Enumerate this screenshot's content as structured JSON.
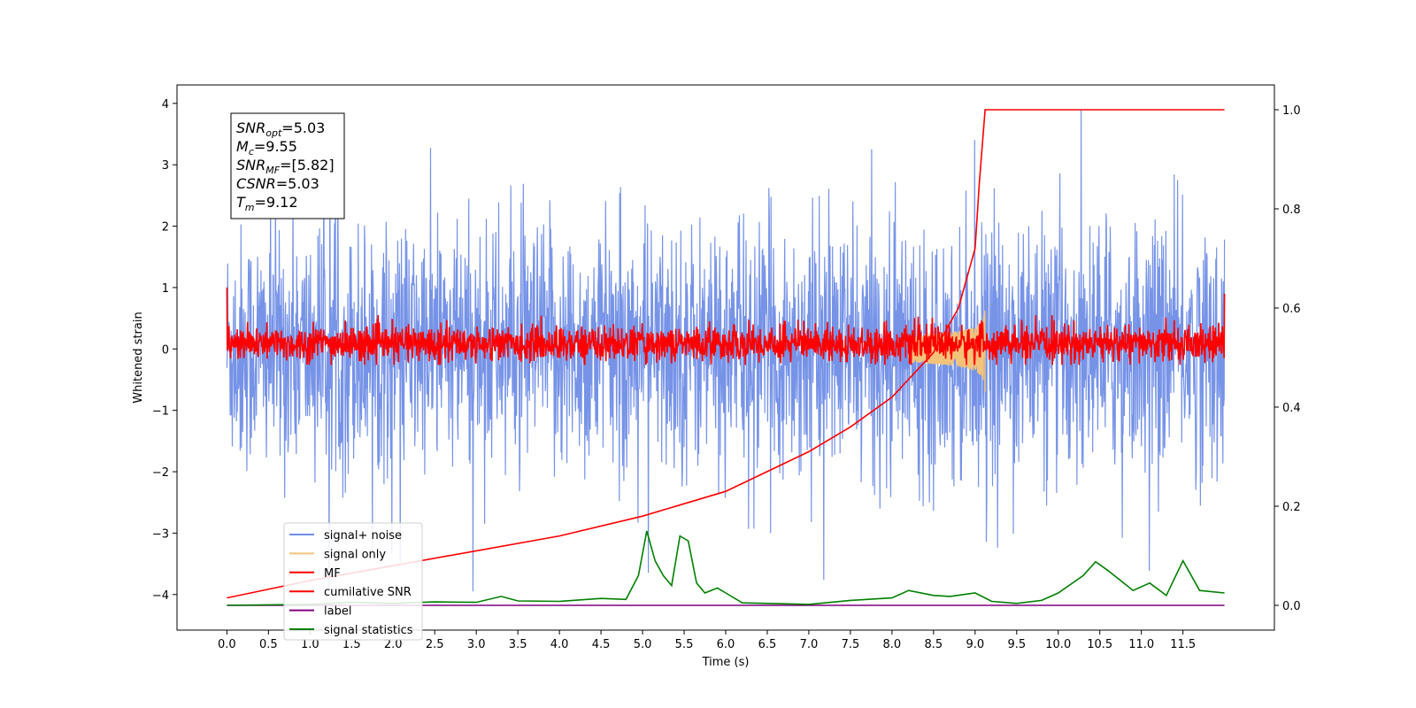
{
  "chart_data": {
    "type": "line",
    "title": "",
    "xlabel": "Time (s)",
    "ylabel": "Whitened strain",
    "xlim": [
      -0.6,
      12.6
    ],
    "ylim": [
      -4.58,
      4.3
    ],
    "y2lim": [
      -0.05,
      1.05
    ],
    "grid": false,
    "legend_placement": "lower-left",
    "x_ticks": [
      0.0,
      0.5,
      1.0,
      1.5,
      2.0,
      2.5,
      3.0,
      3.5,
      4.0,
      4.5,
      5.0,
      5.5,
      6.0,
      6.5,
      7.0,
      7.5,
      8.0,
      8.5,
      9.0,
      9.5,
      10.0,
      10.5,
      11.0,
      11.5
    ],
    "x_tick_labels": [
      "0.0",
      "0.5",
      "1.0",
      "1.5",
      "2.0",
      "2.5",
      "3.0",
      "3.5",
      "4.0",
      "4.5",
      "5.0",
      "5.5",
      "6.0",
      "6.5",
      "7.0",
      "7.5",
      "8.0",
      "8.5",
      "9.0",
      "9.5",
      "10.0",
      "10.5",
      "11.0",
      "11.5"
    ],
    "y_ticks": [
      4,
      3,
      2,
      1,
      0,
      -1,
      -2,
      -3,
      -4
    ],
    "y_tick_labels": [
      "4",
      "3",
      "2",
      "1",
      "0",
      "−1",
      "−2",
      "−3",
      "−4"
    ],
    "y2_ticks": [
      1.0,
      0.8,
      0.6,
      0.4,
      0.2,
      0.0
    ],
    "y2_tick_labels": [
      "1.0",
      "0.8",
      "0.6",
      "0.4",
      "0.2",
      "0.0"
    ],
    "annotation": {
      "lines": [
        {
          "main": "SNR",
          "sub": "opt",
          "value": "=5.03"
        },
        {
          "main": "M",
          "sub": "c",
          "value": "=9.55"
        },
        {
          "main": "SNR",
          "sub": "MF",
          "value": "=[5.82]"
        },
        {
          "main": "CSNR",
          "sub": "",
          "value": "=5.03"
        },
        {
          "main": "T",
          "sub": "m",
          "value": "=9.12"
        }
      ]
    },
    "series": [
      {
        "name": "signal+ noise",
        "color": "#6f8de6",
        "axis": "left",
        "description": "whitened noise band roughly between -2.5 and 2.5 with spikes to ±3.9"
      },
      {
        "name": "signal only",
        "color": "#f4c37a",
        "axis": "left",
        "description": "chirp near t=9.1 s, amplitude up to about 0.7"
      },
      {
        "name": "MF",
        "color": "#ff0000",
        "axis": "left",
        "description": "matched filter output, noise band about -0.25 to 0.5"
      },
      {
        "name": "cumilative SNR",
        "color": "#ff0000",
        "axis": "right",
        "x": [
          0.0,
          1.0,
          2.0,
          3.0,
          4.0,
          5.0,
          6.0,
          7.0,
          7.5,
          8.0,
          8.5,
          8.8,
          9.0,
          9.05,
          9.12,
          12.0
        ],
        "y": [
          0.015,
          0.05,
          0.08,
          0.11,
          0.14,
          0.18,
          0.23,
          0.31,
          0.36,
          0.42,
          0.51,
          0.6,
          0.72,
          0.85,
          1.0,
          1.0
        ]
      },
      {
        "name": "label",
        "color": "#800080",
        "axis": "right",
        "x": [
          0.0,
          12.0
        ],
        "y": [
          0.0,
          0.0
        ]
      },
      {
        "name": "signal statistics",
        "color": "#008000",
        "axis": "right",
        "x": [
          0.0,
          0.5,
          1.0,
          1.5,
          2.0,
          2.5,
          3.0,
          3.3,
          3.5,
          4.0,
          4.5,
          4.8,
          4.95,
          5.05,
          5.15,
          5.25,
          5.35,
          5.45,
          5.55,
          5.65,
          5.75,
          5.9,
          6.0,
          6.2,
          6.5,
          7.0,
          7.5,
          8.0,
          8.2,
          8.5,
          8.7,
          9.0,
          9.2,
          9.5,
          9.8,
          10.0,
          10.3,
          10.45,
          10.6,
          10.9,
          11.1,
          11.3,
          11.5,
          11.7,
          12.0
        ],
        "y": [
          0.0,
          0.001,
          0.002,
          0.006,
          0.004,
          0.007,
          0.006,
          0.018,
          0.009,
          0.008,
          0.014,
          0.012,
          0.06,
          0.15,
          0.09,
          0.06,
          0.04,
          0.14,
          0.13,
          0.045,
          0.025,
          0.035,
          0.025,
          0.005,
          0.004,
          0.002,
          0.01,
          0.015,
          0.03,
          0.02,
          0.018,
          0.025,
          0.008,
          0.004,
          0.01,
          0.025,
          0.06,
          0.088,
          0.07,
          0.03,
          0.045,
          0.02,
          0.09,
          0.03,
          0.025
        ]
      }
    ]
  }
}
